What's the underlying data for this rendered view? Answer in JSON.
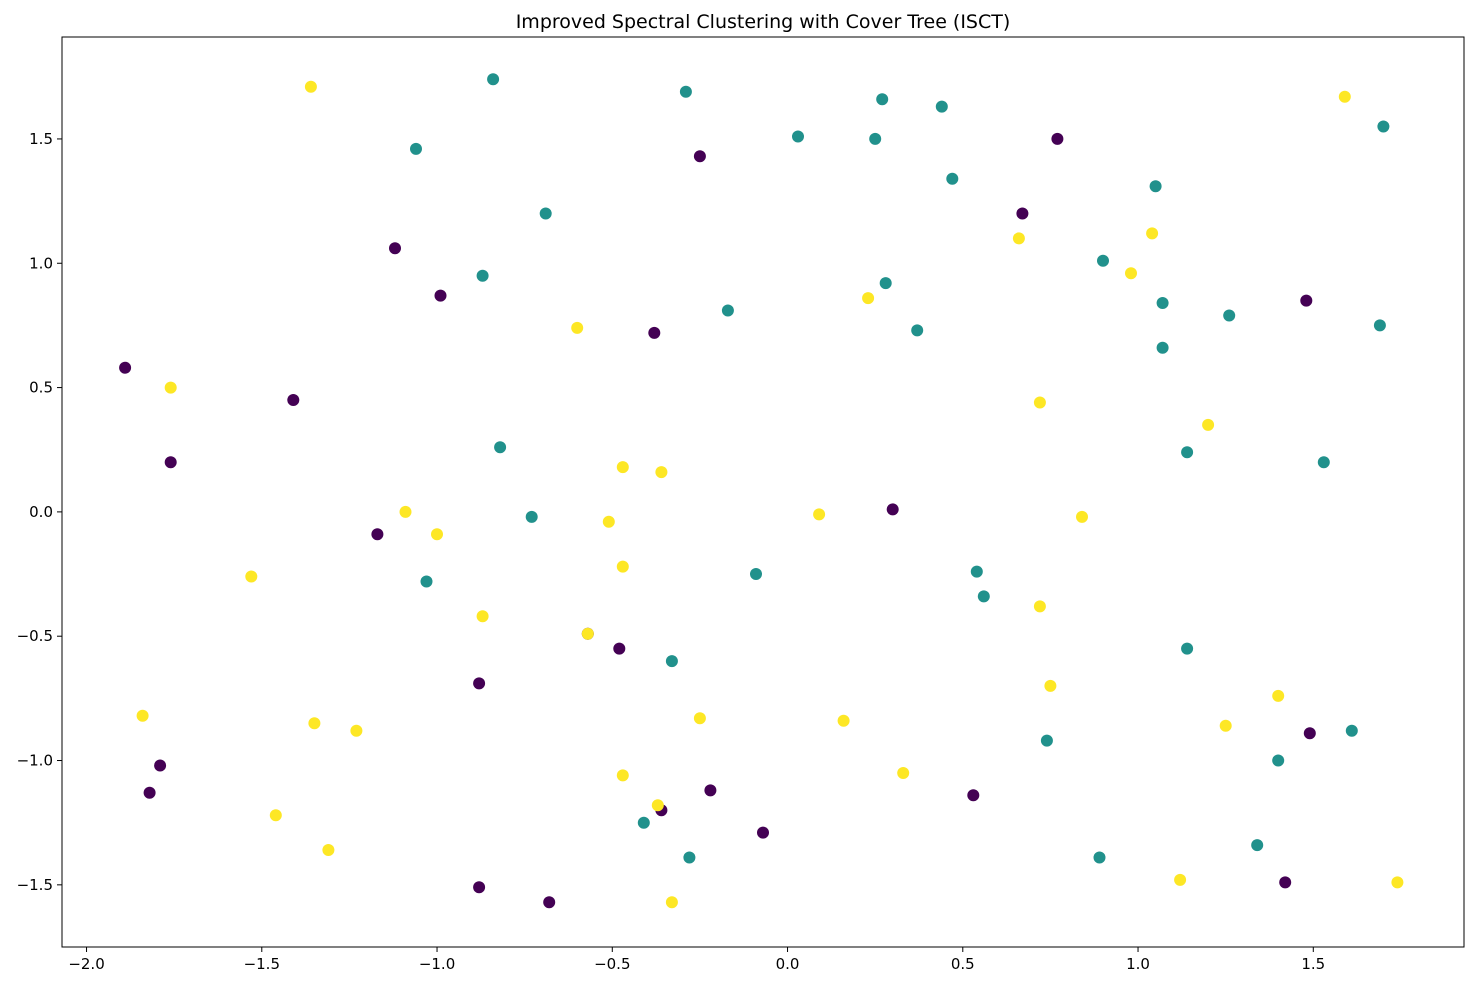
{
  "chart_data": {
    "type": "scatter",
    "title": "Improved Spectral Clustering with Cover Tree (ISCT)",
    "xlabel": "",
    "ylabel": "",
    "xlim": [
      -2.07,
      1.93
    ],
    "ylim": [
      -1.75,
      1.91
    ],
    "x_ticks": [
      -2.0,
      -1.5,
      -1.0,
      -0.5,
      0.0,
      0.5,
      1.0,
      1.5
    ],
    "x_tick_labels": [
      "−2.0",
      "−1.5",
      "−1.0",
      "−0.5",
      "0.0",
      "0.5",
      "1.0",
      "1.5"
    ],
    "y_ticks": [
      1.5,
      1.0,
      0.5,
      0.0,
      -0.5,
      -1.0,
      -1.5
    ],
    "y_tick_labels": [
      "1.5",
      "1.0",
      "0.5",
      "0.0",
      "−0.5",
      "−1.0",
      "−1.5"
    ],
    "grid": false,
    "legend": "none",
    "cluster_colors": [
      "#440154",
      "#21918c",
      "#fde725"
    ],
    "series": [
      {
        "cluster": 0,
        "color": "#440154",
        "points": [
          [
            -0.25,
            1.43
          ],
          [
            0.77,
            1.5
          ],
          [
            0.67,
            1.2
          ],
          [
            -1.12,
            1.06
          ],
          [
            -0.99,
            0.87
          ],
          [
            -0.38,
            0.72
          ],
          [
            1.48,
            0.85
          ],
          [
            -1.89,
            0.58
          ],
          [
            -1.41,
            0.45
          ],
          [
            -1.76,
            0.2
          ],
          [
            0.3,
            0.01
          ],
          [
            -1.17,
            -0.09
          ],
          [
            -0.57,
            -0.49
          ],
          [
            -0.48,
            -0.55
          ],
          [
            -0.88,
            -0.69
          ],
          [
            1.49,
            -0.89
          ],
          [
            -1.79,
            -1.02
          ],
          [
            -1.82,
            -1.13
          ],
          [
            0.53,
            -1.14
          ],
          [
            -0.22,
            -1.12
          ],
          [
            -0.36,
            -1.2
          ],
          [
            -0.07,
            -1.29
          ],
          [
            1.42,
            -1.49
          ],
          [
            -0.88,
            -1.51
          ],
          [
            -0.68,
            -1.57
          ]
        ]
      },
      {
        "cluster": 1,
        "color": "#21918c",
        "points": [
          [
            -0.84,
            1.74
          ],
          [
            -0.29,
            1.69
          ],
          [
            0.27,
            1.66
          ],
          [
            0.44,
            1.63
          ],
          [
            1.7,
            1.55
          ],
          [
            0.03,
            1.51
          ],
          [
            0.25,
            1.5
          ],
          [
            -1.06,
            1.46
          ],
          [
            0.47,
            1.34
          ],
          [
            1.05,
            1.31
          ],
          [
            -0.69,
            1.2
          ],
          [
            0.9,
            1.01
          ],
          [
            -0.87,
            0.95
          ],
          [
            0.28,
            0.92
          ],
          [
            1.07,
            0.84
          ],
          [
            -0.17,
            0.81
          ],
          [
            1.26,
            0.79
          ],
          [
            1.69,
            0.75
          ],
          [
            0.37,
            0.73
          ],
          [
            1.07,
            0.66
          ],
          [
            -0.82,
            0.26
          ],
          [
            1.14,
            0.24
          ],
          [
            1.53,
            0.2
          ],
          [
            -0.73,
            -0.02
          ],
          [
            0.54,
            -0.24
          ],
          [
            -0.09,
            -0.25
          ],
          [
            -1.03,
            -0.28
          ],
          [
            0.56,
            -0.34
          ],
          [
            1.14,
            -0.55
          ],
          [
            -0.33,
            -0.6
          ],
          [
            1.61,
            -0.88
          ],
          [
            0.74,
            -0.92
          ],
          [
            1.4,
            -1.0
          ],
          [
            -0.41,
            -1.25
          ],
          [
            1.34,
            -1.34
          ],
          [
            -0.28,
            -1.39
          ],
          [
            0.89,
            -1.39
          ]
        ]
      },
      {
        "cluster": 2,
        "color": "#fde725",
        "points": [
          [
            -1.36,
            1.71
          ],
          [
            1.59,
            1.67
          ],
          [
            1.04,
            1.12
          ],
          [
            0.66,
            1.1
          ],
          [
            0.98,
            0.96
          ],
          [
            0.23,
            0.86
          ],
          [
            -0.6,
            0.74
          ],
          [
            -1.76,
            0.5
          ],
          [
            0.72,
            0.44
          ],
          [
            1.2,
            0.35
          ],
          [
            -0.47,
            0.18
          ],
          [
            -0.36,
            0.16
          ],
          [
            -1.09,
            0.0
          ],
          [
            0.09,
            -0.01
          ],
          [
            0.84,
            -0.02
          ],
          [
            -0.51,
            -0.04
          ],
          [
            -1.0,
            -0.09
          ],
          [
            -0.47,
            -0.22
          ],
          [
            -1.53,
            -0.26
          ],
          [
            0.72,
            -0.38
          ],
          [
            -0.87,
            -0.42
          ],
          [
            -0.57,
            -0.49
          ],
          [
            0.75,
            -0.7
          ],
          [
            1.4,
            -0.74
          ],
          [
            -1.84,
            -0.82
          ],
          [
            -0.25,
            -0.83
          ],
          [
            0.16,
            -0.84
          ],
          [
            -1.35,
            -0.85
          ],
          [
            1.25,
            -0.86
          ],
          [
            -1.23,
            -0.88
          ],
          [
            0.33,
            -1.05
          ],
          [
            -0.47,
            -1.06
          ],
          [
            -0.37,
            -1.18
          ],
          [
            -1.46,
            -1.22
          ],
          [
            -1.31,
            -1.36
          ],
          [
            1.12,
            -1.48
          ],
          [
            1.74,
            -1.49
          ],
          [
            -0.33,
            -1.57
          ]
        ]
      }
    ]
  }
}
